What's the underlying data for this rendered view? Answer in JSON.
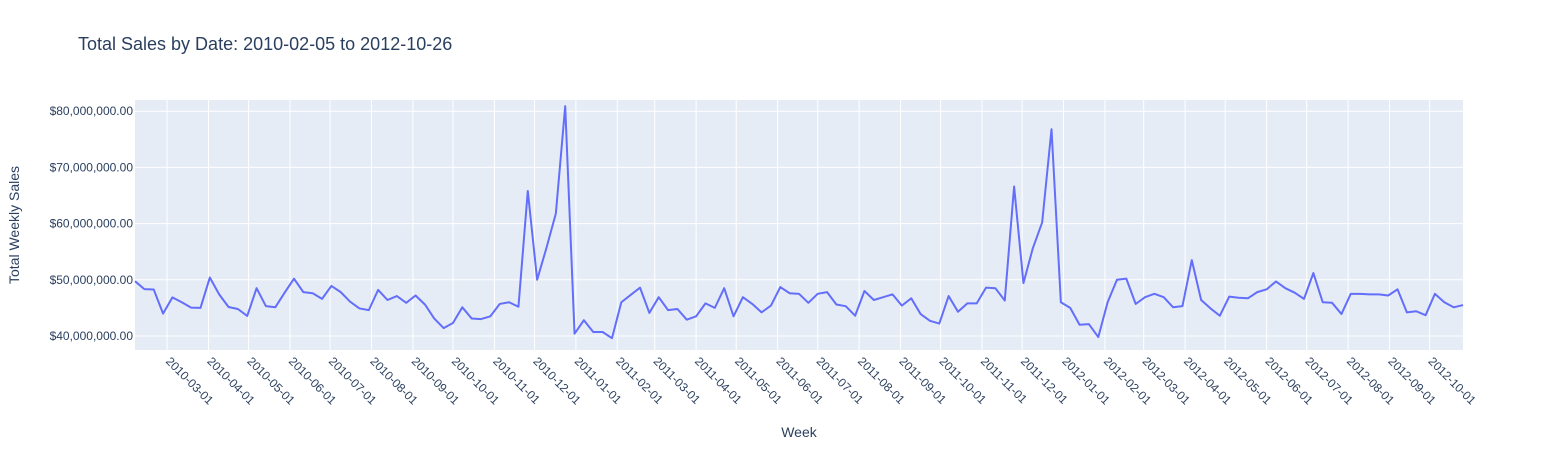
{
  "chart_data": {
    "type": "line",
    "title": "Total Sales by Date: 2010-02-05 to 2012-10-26",
    "xlabel": "Week",
    "ylabel": "Total Weekly Sales",
    "x_range": [
      "2010-02-05",
      "2012-10-26"
    ],
    "ylim": [
      37500000,
      82000000
    ],
    "yticks": [
      40000000,
      50000000,
      60000000,
      70000000,
      80000000
    ],
    "ytick_labels": [
      "$40,000,000.00",
      "$50,000,000.00",
      "$60,000,000.00",
      "$70,000,000.00",
      "$80,000,000.00"
    ],
    "xticks": [
      "2010-03-01",
      "2010-04-01",
      "2010-05-01",
      "2010-06-01",
      "2010-07-01",
      "2010-08-01",
      "2010-09-01",
      "2010-10-01",
      "2010-11-01",
      "2010-12-01",
      "2011-01-01",
      "2011-02-01",
      "2011-03-01",
      "2011-04-01",
      "2011-05-01",
      "2011-06-01",
      "2011-07-01",
      "2011-08-01",
      "2011-09-01",
      "2011-10-01",
      "2011-11-01",
      "2011-12-01",
      "2012-01-01",
      "2012-02-01",
      "2012-03-01",
      "2012-04-01",
      "2012-05-01",
      "2012-06-01",
      "2012-07-01",
      "2012-08-01",
      "2012-09-01",
      "2012-10-01"
    ],
    "grid": true,
    "colors": {
      "plot_bg": "#E5ECF6",
      "grid": "#ffffff",
      "line": "#636EFA",
      "text": "#2a3f5f"
    },
    "series": [
      {
        "x": [
          "2010-02-05",
          "2010-02-12",
          "2010-02-19",
          "2010-02-26",
          "2010-03-05",
          "2010-03-12",
          "2010-03-19",
          "2010-03-26",
          "2010-04-02",
          "2010-04-09",
          "2010-04-16",
          "2010-04-23",
          "2010-04-30",
          "2010-05-07",
          "2010-05-14",
          "2010-05-21",
          "2010-05-28",
          "2010-06-04",
          "2010-06-11",
          "2010-06-18",
          "2010-06-25",
          "2010-07-02",
          "2010-07-09",
          "2010-07-16",
          "2010-07-23",
          "2010-07-30",
          "2010-08-06",
          "2010-08-13",
          "2010-08-20",
          "2010-08-27",
          "2010-09-03",
          "2010-09-10",
          "2010-09-17",
          "2010-09-24",
          "2010-10-01",
          "2010-10-08",
          "2010-10-15",
          "2010-10-22",
          "2010-10-29",
          "2010-11-05",
          "2010-11-12",
          "2010-11-19",
          "2010-11-26",
          "2010-12-03",
          "2010-12-10",
          "2010-12-17",
          "2010-12-24",
          "2010-12-31",
          "2011-01-07",
          "2011-01-14",
          "2011-01-21",
          "2011-01-28",
          "2011-02-04",
          "2011-02-11",
          "2011-02-18",
          "2011-02-25",
          "2011-03-04",
          "2011-03-11",
          "2011-03-18",
          "2011-03-25",
          "2011-04-01",
          "2011-04-08",
          "2011-04-15",
          "2011-04-22",
          "2011-04-29",
          "2011-05-06",
          "2011-05-13",
          "2011-05-20",
          "2011-05-27",
          "2011-06-03",
          "2011-06-10",
          "2011-06-17",
          "2011-06-24",
          "2011-07-01",
          "2011-07-08",
          "2011-07-15",
          "2011-07-22",
          "2011-07-29",
          "2011-08-05",
          "2011-08-12",
          "2011-08-19",
          "2011-08-26",
          "2011-09-02",
          "2011-09-09",
          "2011-09-16",
          "2011-09-23",
          "2011-09-30",
          "2011-10-07",
          "2011-10-14",
          "2011-10-21",
          "2011-10-28",
          "2011-11-04",
          "2011-11-11",
          "2011-11-18",
          "2011-11-25",
          "2011-12-02",
          "2011-12-09",
          "2011-12-16",
          "2011-12-23",
          "2011-12-30",
          "2012-01-06",
          "2012-01-13",
          "2012-01-20",
          "2012-01-27",
          "2012-02-03",
          "2012-02-10",
          "2012-02-17",
          "2012-02-24",
          "2012-03-02",
          "2012-03-09",
          "2012-03-16",
          "2012-03-23",
          "2012-03-30",
          "2012-04-06",
          "2012-04-13",
          "2012-04-20",
          "2012-04-27",
          "2012-05-04",
          "2012-05-11",
          "2012-05-18",
          "2012-05-25",
          "2012-06-01",
          "2012-06-08",
          "2012-06-15",
          "2012-06-22",
          "2012-06-29",
          "2012-07-06",
          "2012-07-13",
          "2012-07-20",
          "2012-07-27",
          "2012-08-03",
          "2012-08-10",
          "2012-08-17",
          "2012-08-24",
          "2012-08-31",
          "2012-09-07",
          "2012-09-14",
          "2012-09-21",
          "2012-09-28",
          "2012-10-05",
          "2012-10-12",
          "2012-10-19",
          "2012-10-26"
        ],
        "y": [
          49750000,
          48340000,
          48280000,
          43970000,
          46870000,
          46000000,
          45050000,
          44990000,
          50400000,
          47400000,
          45150000,
          44800000,
          43560000,
          48500000,
          45300000,
          45100000,
          47700000,
          50200000,
          47800000,
          47600000,
          46600000,
          48900000,
          47800000,
          46100000,
          44900000,
          44600000,
          48200000,
          46400000,
          47100000,
          45900000,
          47200000,
          45600000,
          43100000,
          41400000,
          42300000,
          45100000,
          43100000,
          43000000,
          43500000,
          45700000,
          46000000,
          45200000,
          65800000,
          50000000,
          55700000,
          61800000,
          80900000,
          40400000,
          42800000,
          40700000,
          40700000,
          39600000,
          46000000,
          47300000,
          48600000,
          44100000,
          46900000,
          44600000,
          44800000,
          42900000,
          43500000,
          45800000,
          45000000,
          48500000,
          43500000,
          46900000,
          45700000,
          44200000,
          45400000,
          48700000,
          47600000,
          47500000,
          45900000,
          47500000,
          47800000,
          45600000,
          45300000,
          43600000,
          48000000,
          46400000,
          46900000,
          47400000,
          45400000,
          46700000,
          43900000,
          42700000,
          42200000,
          47100000,
          44300000,
          45800000,
          45800000,
          48600000,
          48500000,
          46300000,
          66600000,
          49400000,
          55600000,
          60200000,
          76800000,
          46000000,
          45000000,
          42000000,
          42100000,
          39800000,
          46000000,
          50000000,
          50200000,
          45700000,
          46900000,
          47500000,
          46900000,
          45100000,
          45300000,
          53500000,
          46400000,
          44900000,
          43600000,
          47000000,
          46800000,
          46700000,
          47800000,
          48300000,
          49700000,
          48500000,
          47700000,
          46600000,
          51200000,
          46000000,
          45900000,
          43900000,
          47500000,
          47500000,
          47400000,
          47400000,
          47200000,
          48300000,
          44200000,
          44400000,
          43700000,
          47500000,
          46000000,
          45100000,
          45500000
        ]
      }
    ]
  }
}
